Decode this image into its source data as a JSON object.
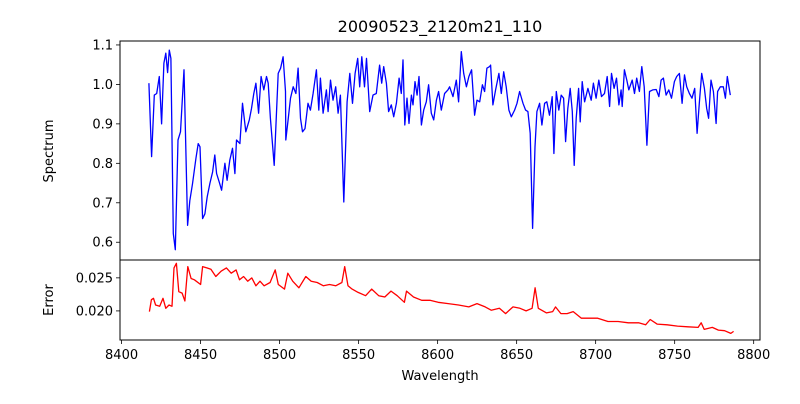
{
  "chart_data": [
    {
      "type": "line",
      "title": "20090523_2120m21_110",
      "xlabel": "",
      "ylabel": "Spectrum",
      "xlim": [
        8399,
        8804
      ],
      "ylim": [
        0.555,
        1.11
      ],
      "yticks": [
        0.6,
        0.7,
        0.8,
        0.9,
        1.0,
        1.1
      ],
      "ytick_labels": [
        "0.6",
        "0.7",
        "0.8",
        "0.9",
        "1.0",
        "1.1"
      ],
      "grid": false,
      "series": [
        {
          "name": "spectrum",
          "color": "#0000ff",
          "x": [
            8417.3,
            8419,
            8420.7,
            8422.2,
            8423.9,
            8425.3,
            8426.8,
            8428,
            8429.1,
            8430.2,
            8431.2,
            8432.7,
            8434,
            8435.7,
            8437.3,
            8439.5,
            8441.8,
            8443.2,
            8444.9,
            8447,
            8448.5,
            8449.6,
            8451.3,
            8452.7,
            8454.2,
            8455.9,
            8457.6,
            8459,
            8460.1,
            8461.8,
            8463.3,
            8465.4,
            8466.8,
            8468.5,
            8470.2,
            8471.7,
            8472.7,
            8474.9,
            8476.5,
            8478.6,
            8480.8,
            8482.2,
            8483.7,
            8485,
            8486.7,
            8488.3,
            8490,
            8491.7,
            8492.8,
            8494.2,
            8496.6,
            8499.1,
            8500.6,
            8502.2,
            8503.7,
            8503.9,
            8505.4,
            8506.9,
            8508.6,
            8510.3,
            8511.7,
            8513.2,
            8514.5,
            8516.1,
            8518,
            8519.5,
            8521.2,
            8523.3,
            8524.8,
            8525.8,
            8527.5,
            8529.6,
            8530.7,
            8532.2,
            8533.8,
            8535.5,
            8537,
            8538.5,
            8540.6,
            8542.7,
            8544.4,
            8546.1,
            8547.8,
            8549.4,
            8550.7,
            8552,
            8553.7,
            8555,
            8557,
            8559.1,
            8561.2,
            8563.3,
            8564.6,
            8565.9,
            8567.6,
            8569,
            8570.7,
            8572.2,
            8573.9,
            8575.6,
            8577,
            8578.1,
            8579.2,
            8580.6,
            8581.9,
            8583.4,
            8584.4,
            8585.7,
            8587,
            8588.2,
            8589.7,
            8591.2,
            8592.8,
            8594.3,
            8596,
            8597.5,
            8599.2,
            8600.6,
            8602.3,
            8604.4,
            8606.5,
            8607.6,
            8609.7,
            8611.8,
            8613.3,
            8615,
            8616.5,
            8618.2,
            8619.8,
            8621.5,
            8623.4,
            8624.9,
            8626.6,
            8628.3,
            8629.7,
            8631.2,
            8632.9,
            8633.5,
            8635,
            8636.7,
            8638.8,
            8640.3,
            8641.8,
            8643.4,
            8645.1,
            8646.6,
            8648.7,
            8650.2,
            8651.9,
            8654,
            8655.7,
            8657.1,
            8658.6,
            8660.1,
            8661.6,
            8662.8,
            8664.5,
            8666,
            8667.7,
            8669.1,
            8670.8,
            8672.5,
            8673.6,
            8675.1,
            8676.7,
            8678.2,
            8679.7,
            8681,
            8682.4,
            8683.9,
            8685.2,
            8686.4,
            8687.7,
            8689.2,
            8690.2,
            8691.5,
            8693,
            8695.1,
            8697.2,
            8698.6,
            8700.3,
            8702,
            8703.7,
            8705.6,
            8707.3,
            8708.8,
            8710,
            8711.7,
            8713.2,
            8714.7,
            8716.1,
            8716.8,
            8718.2,
            8719.7,
            8721,
            8723.1,
            8724.6,
            8726,
            8727.7,
            8729.2,
            8730.7,
            8732.4,
            8734.1,
            8736.1,
            8738.3,
            8740,
            8741.4,
            8742.9,
            8744.6,
            8746.3,
            8748,
            8749.8,
            8751.3,
            8753,
            8754.7,
            8756.2,
            8757.6,
            8759.3,
            8761,
            8762.7,
            8764.2,
            8765.6,
            8767.1,
            8768.8,
            8770.3,
            8771.5,
            8773,
            8774.5,
            8776.2,
            8777.2,
            8778.9,
            8780.8,
            8782.1,
            8783.3,
            8785.2
          ],
          "y": [
            1.003,
            0.817,
            0.973,
            0.977,
            1.02,
            0.9,
            1.054,
            1.079,
            1.03,
            1.087,
            1.066,
            0.622,
            0.581,
            0.859,
            0.88,
            1.037,
            0.643,
            0.705,
            0.748,
            0.812,
            0.85,
            0.842,
            0.66,
            0.672,
            0.715,
            0.749,
            0.778,
            0.821,
            0.774,
            0.753,
            0.732,
            0.8,
            0.757,
            0.808,
            0.838,
            0.774,
            0.859,
            0.85,
            0.952,
            0.88,
            0.91,
            0.939,
            0.977,
            1.003,
            0.927,
            1.02,
            0.986,
            1.02,
            1.003,
            0.914,
            0.795,
            1.028,
            1.041,
            1.07,
            0.982,
            0.859,
            0.91,
            0.965,
            0.994,
            0.977,
            1.041,
            0.914,
            0.88,
            0.888,
            0.952,
            0.935,
            0.977,
            1.037,
            0.935,
            1.016,
            0.927,
            0.986,
            0.931,
            1.011,
            0.96,
            0.994,
            0.927,
            0.973,
            0.702,
            0.956,
            1.028,
            0.952,
            1.028,
            1.066,
            0.994,
            1.07,
            0.994,
            1.066,
            0.931,
            0.973,
            0.977,
            1.049,
            1.003,
            1.045,
            1.003,
            0.931,
            0.948,
            0.918,
            0.952,
            1.016,
            0.977,
            1.062,
            0.897,
            0.965,
            0.901,
            0.973,
            0.948,
            1.007,
            0.973,
            1.02,
            0.897,
            0.935,
            0.956,
            0.999,
            0.927,
            0.91,
            0.96,
            0.982,
            0.935,
            0.977,
            0.986,
            0.994,
            0.969,
            1.011,
            0.956,
            1.083,
            1.028,
            0.994,
            1.02,
            1.037,
            0.922,
            0.96,
            0.956,
            0.999,
            0.982,
            1.041,
            1.045,
            1.049,
            0.948,
            0.986,
            1.028,
            0.977,
            1.032,
            0.994,
            0.935,
            0.918,
            0.935,
            0.952,
            0.982,
            0.952,
            0.935,
            0.931,
            0.876,
            0.635,
            0.842,
            0.931,
            0.952,
            0.897,
            0.952,
            0.956,
            0.922,
            0.969,
            0.825,
            0.982,
            0.935,
            0.973,
            0.965,
            0.855,
            0.939,
            0.99,
            0.931,
            0.795,
            0.914,
            0.99,
            0.905,
            1.007,
            0.956,
            0.99,
            0.96,
            1.003,
            0.965,
            1.011,
            0.969,
            0.977,
            1.02,
            0.944,
            1.028,
            0.99,
            1.016,
            0.948,
            0.986,
            0.944,
            1.037,
            1.011,
            0.986,
            1.011,
            0.977,
            1.016,
            0.982,
            1.045,
            0.994,
            0.846,
            0.982,
            0.986,
            0.987,
            0.969,
            1.011,
            1.016,
            0.973,
            0.986,
            0.965,
            1.007,
            1.02,
            1.028,
            0.952,
            1.024,
            0.994,
            0.977,
            0.965,
            0.99,
            0.876,
            0.952,
            1.028,
            0.99,
            0.939,
            0.914,
            1.011,
            0.982,
            0.901,
            0.982,
            0.994,
            0.994,
            0.965,
            1.02,
            0.973
          ]
        }
      ]
    },
    {
      "type": "line",
      "xlabel": "Wavelength",
      "ylabel": "Error",
      "xlim": [
        8399,
        8804
      ],
      "ylim": [
        0.0156,
        0.0277
      ],
      "xticks": [
        8400,
        8450,
        8500,
        8550,
        8600,
        8650,
        8700,
        8750,
        8800
      ],
      "xtick_labels": [
        "8400",
        "8450",
        "8500",
        "8550",
        "8600",
        "8650",
        "8700",
        "8750",
        "8800"
      ],
      "yticks": [
        0.02,
        0.025
      ],
      "ytick_labels": [
        "0.020",
        "0.025"
      ],
      "grid": false,
      "series": [
        {
          "name": "error",
          "color": "#ff0000",
          "x": [
            8417.6,
            8418.9,
            8420.2,
            8421.5,
            8424.1,
            8426.2,
            8428,
            8430,
            8431.9,
            8433.2,
            8434.7,
            8436.2,
            8438.3,
            8440.1,
            8441.9,
            8444,
            8446.1,
            8450,
            8451.3,
            8453.9,
            8456.5,
            8459.6,
            8463,
            8466.3,
            8469.4,
            8472.5,
            8474.6,
            8477.2,
            8479.8,
            8482.4,
            8485,
            8487.6,
            8490.2,
            8494,
            8497.2,
            8499.2,
            8503.1,
            8505.2,
            8508.3,
            8512.2,
            8516.6,
            8520,
            8523.8,
            8527.7,
            8531.6,
            8535.5,
            8539.4,
            8541.2,
            8543.3,
            8545.9,
            8549.7,
            8554.4,
            8558.3,
            8562.7,
            8566.6,
            8570.5,
            8574.4,
            8579,
            8580.3,
            8584.7,
            8589.9,
            8595.1,
            8600.3,
            8606.7,
            8613.2,
            8619.7,
            8624.9,
            8630.1,
            8633.9,
            8639.1,
            8643,
            8647.7,
            8652.1,
            8656,
            8659.8,
            8661.7,
            8663.7,
            8668.9,
            8672.8,
            8674.6,
            8678,
            8681.9,
            8685.8,
            8691,
            8696.1,
            8701.3,
            8707.8,
            8714.2,
            8720.7,
            8727.2,
            8731.6,
            8734.5,
            8738.9,
            8745.3,
            8751.8,
            8758.3,
            8764.8,
            8766.8,
            8768.7,
            8773.8,
            8777.7,
            8781.6,
            8785.5,
            8787.3
          ],
          "y": [
            0.0199,
            0.0217,
            0.0219,
            0.0209,
            0.0207,
            0.0219,
            0.0204,
            0.0209,
            0.0207,
            0.0265,
            0.0272,
            0.0229,
            0.0227,
            0.0215,
            0.0267,
            0.0249,
            0.0247,
            0.024,
            0.0267,
            0.0265,
            0.0263,
            0.0252,
            0.026,
            0.0265,
            0.0257,
            0.0262,
            0.0247,
            0.0252,
            0.0245,
            0.025,
            0.0238,
            0.0245,
            0.0238,
            0.0243,
            0.0262,
            0.024,
            0.0233,
            0.0257,
            0.0245,
            0.0235,
            0.0252,
            0.0245,
            0.0243,
            0.0238,
            0.024,
            0.0238,
            0.0243,
            0.0267,
            0.0238,
            0.0233,
            0.0228,
            0.0223,
            0.0233,
            0.0223,
            0.0221,
            0.023,
            0.0223,
            0.0213,
            0.023,
            0.0221,
            0.0216,
            0.0216,
            0.0213,
            0.0211,
            0.0209,
            0.0206,
            0.0211,
            0.0206,
            0.0201,
            0.0204,
            0.0196,
            0.0206,
            0.0204,
            0.02,
            0.0204,
            0.0235,
            0.0204,
            0.0197,
            0.0199,
            0.0206,
            0.0196,
            0.0196,
            0.0199,
            0.0189,
            0.0189,
            0.0189,
            0.0184,
            0.0184,
            0.0182,
            0.0182,
            0.0179,
            0.0187,
            0.018,
            0.0179,
            0.0177,
            0.0176,
            0.0175,
            0.0182,
            0.0172,
            0.0175,
            0.0171,
            0.017,
            0.0166,
            0.0169
          ]
        }
      ]
    }
  ]
}
